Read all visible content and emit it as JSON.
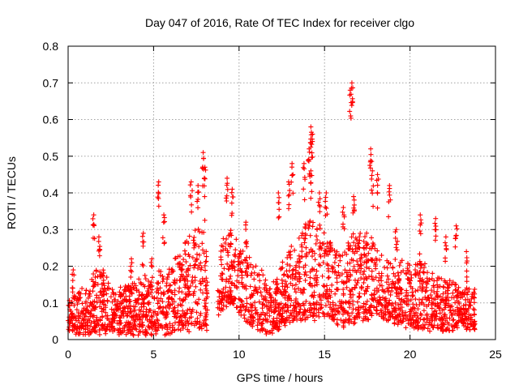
{
  "chart_data": {
    "type": "scatter",
    "title": "Day 047 of 2016, Rate Of TEC Index for receiver clgo",
    "xlabel": "GPS time / hours",
    "ylabel": "ROTI / TECUs",
    "xlim": [
      0,
      25
    ],
    "ylim": [
      0,
      0.8
    ],
    "x_ticks": [
      "0",
      "5",
      "10",
      "15",
      "20",
      "25"
    ],
    "x_tick_values": [
      0,
      5,
      10,
      15,
      20,
      25
    ],
    "y_ticks": [
      "0",
      "0.1",
      "0.2",
      "0.3",
      "0.4",
      "0.5",
      "0.6",
      "0.7",
      "0.8"
    ],
    "y_tick_values": [
      0,
      0.1,
      0.2,
      0.3,
      0.4,
      0.5,
      0.6,
      0.7,
      0.8
    ],
    "grid": true,
    "marker": "+",
    "color": "#ff0000",
    "series": [
      {
        "name": "ROTI",
        "envelope": {
          "hours": [
            0.0,
            0.5,
            1.0,
            1.5,
            2.0,
            2.5,
            3.0,
            3.5,
            4.0,
            4.5,
            5.0,
            5.5,
            6.0,
            6.5,
            7.0,
            7.5,
            8.0,
            8.5,
            9.0,
            9.5,
            10.0,
            10.5,
            11.0,
            11.5,
            12.0,
            12.5,
            13.0,
            13.5,
            14.0,
            14.5,
            15.0,
            15.5,
            16.0,
            16.5,
            17.0,
            17.5,
            18.0,
            18.5,
            19.0,
            19.5,
            20.0,
            20.5,
            21.0,
            21.5,
            22.0,
            22.5,
            23.0,
            23.5,
            23.8
          ],
          "upper": [
            0.1,
            0.13,
            0.14,
            0.18,
            0.2,
            0.15,
            0.14,
            0.15,
            0.16,
            0.18,
            0.15,
            0.2,
            0.22,
            0.24,
            0.27,
            0.3,
            0.32,
            0.0,
            0.27,
            0.3,
            0.26,
            0.24,
            0.2,
            0.17,
            0.16,
            0.2,
            0.25,
            0.3,
            0.32,
            0.35,
            0.3,
            0.26,
            0.25,
            0.28,
            0.3,
            0.3,
            0.25,
            0.22,
            0.22,
            0.22,
            0.2,
            0.22,
            0.2,
            0.17,
            0.17,
            0.16,
            0.15,
            0.15,
            0.14
          ],
          "lower": [
            0.02,
            0.02,
            0.02,
            0.02,
            0.02,
            0.02,
            0.02,
            0.02,
            0.02,
            0.02,
            0.02,
            0.02,
            0.02,
            0.03,
            0.03,
            0.03,
            0.04,
            0.0,
            0.08,
            0.1,
            0.08,
            0.05,
            0.03,
            0.02,
            0.02,
            0.04,
            0.05,
            0.06,
            0.06,
            0.06,
            0.06,
            0.05,
            0.04,
            0.04,
            0.06,
            0.06,
            0.07,
            0.06,
            0.05,
            0.04,
            0.04,
            0.03,
            0.03,
            0.03,
            0.03,
            0.03,
            0.03,
            0.03,
            0.03
          ]
        },
        "peaks": [
          {
            "x": 0.3,
            "y": 0.19
          },
          {
            "x": 1.5,
            "y": 0.34
          },
          {
            "x": 1.8,
            "y": 0.28
          },
          {
            "x": 3.7,
            "y": 0.22
          },
          {
            "x": 4.4,
            "y": 0.29
          },
          {
            "x": 4.9,
            "y": 0.22
          },
          {
            "x": 5.3,
            "y": 0.43
          },
          {
            "x": 5.6,
            "y": 0.34
          },
          {
            "x": 7.2,
            "y": 0.43
          },
          {
            "x": 7.6,
            "y": 0.42
          },
          {
            "x": 7.9,
            "y": 0.51
          },
          {
            "x": 8.0,
            "y": 0.47
          },
          {
            "x": 9.3,
            "y": 0.44
          },
          {
            "x": 9.6,
            "y": 0.41
          },
          {
            "x": 10.4,
            "y": 0.32
          },
          {
            "x": 12.3,
            "y": 0.4
          },
          {
            "x": 12.9,
            "y": 0.43
          },
          {
            "x": 13.1,
            "y": 0.48
          },
          {
            "x": 13.8,
            "y": 0.48
          },
          {
            "x": 14.2,
            "y": 0.58
          },
          {
            "x": 14.3,
            "y": 0.56
          },
          {
            "x": 14.1,
            "y": 0.52
          },
          {
            "x": 14.2,
            "y": 0.46
          },
          {
            "x": 14.7,
            "y": 0.4
          },
          {
            "x": 15.1,
            "y": 0.4
          },
          {
            "x": 16.1,
            "y": 0.36
          },
          {
            "x": 16.6,
            "y": 0.7
          },
          {
            "x": 16.5,
            "y": 0.68
          },
          {
            "x": 16.7,
            "y": 0.39
          },
          {
            "x": 17.7,
            "y": 0.52
          },
          {
            "x": 17.8,
            "y": 0.46
          },
          {
            "x": 18.1,
            "y": 0.45
          },
          {
            "x": 18.8,
            "y": 0.42
          },
          {
            "x": 19.2,
            "y": 0.3
          },
          {
            "x": 20.6,
            "y": 0.34
          },
          {
            "x": 21.5,
            "y": 0.33
          },
          {
            "x": 22.1,
            "y": 0.28
          },
          {
            "x": 22.7,
            "y": 0.31
          },
          {
            "x": 23.3,
            "y": 0.24
          }
        ]
      }
    ]
  }
}
